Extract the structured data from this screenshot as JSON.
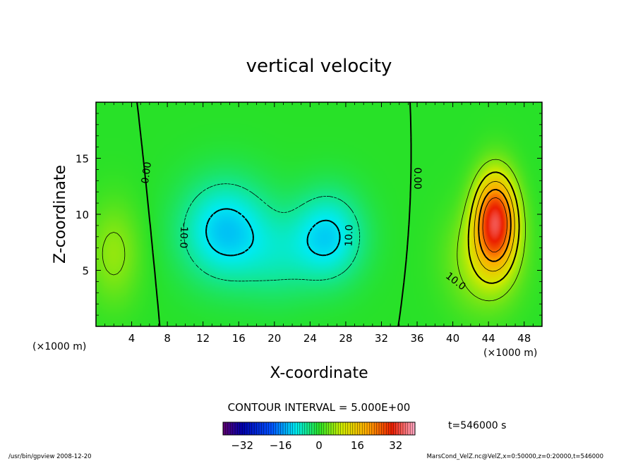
{
  "chart_data": {
    "type": "heatmap",
    "title": "vertical velocity",
    "xlabel": "X-coordinate",
    "ylabel": "Z-coordinate",
    "x_unit": "(×1000 m)",
    "y_unit": "(×1000 m)",
    "xlim": [
      0,
      50
    ],
    "ylim": [
      0,
      20
    ],
    "xticks": [
      4,
      8,
      12,
      16,
      20,
      24,
      28,
      32,
      36,
      40,
      44,
      48
    ],
    "yticks": [
      5,
      10,
      15
    ],
    "contour_interval_text": "CONTOUR INTERVAL = 5.000E+00",
    "contour_labels": [
      {
        "text": "0.00",
        "x": 5.7,
        "y": 13.7,
        "angle": -82
      },
      {
        "text": "0.00",
        "x": 36.0,
        "y": 13.2,
        "angle": 90
      },
      {
        "text": "-10.0",
        "x": 9.8,
        "y": 8.1,
        "angle": 92
      },
      {
        "text": "10.0",
        "x": 28.4,
        "y": 8.1,
        "angle": -88
      },
      {
        "text": "10.0",
        "x": 40.3,
        "y": 4.0,
        "angle": 38
      }
    ],
    "fields": [
      {
        "x": 2.0,
        "y": 6.5,
        "sx": 3.0,
        "sy": 4.5,
        "amp": 6
      },
      {
        "x": 14.5,
        "y": 8.5,
        "sx": 5.0,
        "sy": 4.5,
        "amp": -12
      },
      {
        "x": 26.0,
        "y": 8.0,
        "sx": 4.0,
        "sy": 4.0,
        "amp": -11
      },
      {
        "x": 20.5,
        "y": 6.0,
        "sx": 4.0,
        "sy": 4.0,
        "amp": -4
      },
      {
        "x": 44.8,
        "y": 9.5,
        "sx": 2.3,
        "sy": 4.0,
        "amp": 30
      },
      {
        "x": 43.5,
        "y": 6.0,
        "sx": 4.0,
        "sy": 4.5,
        "amp": 8
      }
    ],
    "colorbar": {
      "range": [
        -40,
        40
      ],
      "ticks": [
        -32,
        -16,
        0,
        16,
        32
      ],
      "time_label": "t=546000 s"
    },
    "footer_left": "/usr/bin/gpview  2008-12-20",
    "footer_right": "MarsCond_VelZ.nc@VelZ,x=0:50000,z=0:20000,t=546000"
  }
}
